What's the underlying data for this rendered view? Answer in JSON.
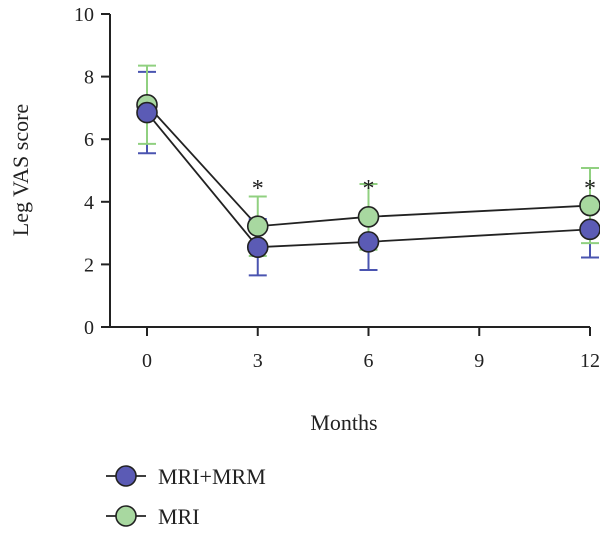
{
  "chart_data": {
    "type": "line",
    "xlabel": "Months",
    "ylabel": "Leg VAS score",
    "xlim": [
      0,
      12
    ],
    "ylim": [
      0,
      10
    ],
    "x_ticks": [
      0,
      3,
      6,
      9,
      12
    ],
    "y_ticks": [
      0,
      2,
      4,
      6,
      8,
      10
    ],
    "grid": false,
    "legend_position": "bottom-left",
    "series": [
      {
        "name": "MRI+MRM",
        "color": "#5b5bb5",
        "error_color": "#4a54b0",
        "x": [
          0,
          3,
          6,
          12
        ],
        "y": [
          6.85,
          2.55,
          2.72,
          3.12
        ],
        "error": [
          1.3,
          0.9,
          0.9,
          0.9
        ]
      },
      {
        "name": "MRI",
        "color": "#a8d8a0",
        "error_color": "#90d080",
        "x": [
          0,
          3,
          6,
          12
        ],
        "y": [
          7.1,
          3.22,
          3.52,
          3.88
        ],
        "error": [
          1.25,
          0.95,
          1.05,
          1.2
        ]
      }
    ],
    "annotations": [
      {
        "x": 3,
        "text": "*"
      },
      {
        "x": 6,
        "text": "*"
      },
      {
        "x": 12,
        "text": "*"
      }
    ]
  }
}
